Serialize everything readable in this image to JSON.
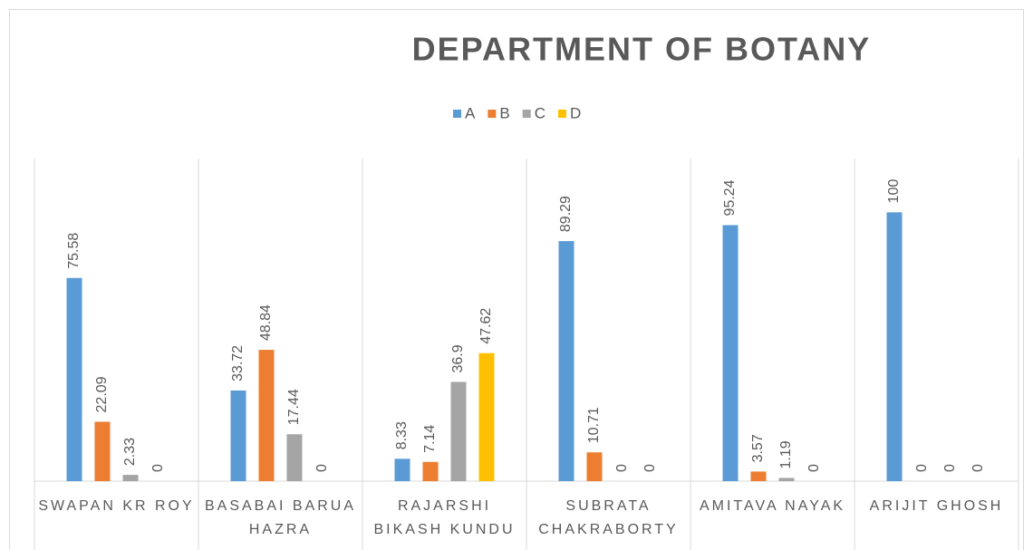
{
  "chart_data": {
    "type": "bar",
    "title": "DEPARTMENT OF BOTANY",
    "categories": [
      "SWAPAN KR ROY",
      "BASABAI BARUA HAZRA",
      "RAJARSHI BIKASH KUNDU",
      "SUBRATA CHAKRABORTY",
      "AMITAVA NAYAK",
      "ARIJIT GHOSH"
    ],
    "series": [
      {
        "name": "A",
        "color": "#5b9bd5",
        "values": [
          75.58,
          33.72,
          8.33,
          89.29,
          95.24,
          100
        ]
      },
      {
        "name": "B",
        "color": "#ed7d31",
        "values": [
          22.09,
          48.84,
          7.14,
          10.71,
          3.57,
          0
        ]
      },
      {
        "name": "C",
        "color": "#a5a5a5",
        "values": [
          2.33,
          17.44,
          36.9,
          0,
          1.19,
          0
        ]
      },
      {
        "name": "D",
        "color": "#ffc000",
        "values": [
          0,
          0,
          47.62,
          0,
          0,
          0
        ]
      }
    ],
    "ylim": [
      0,
      120
    ],
    "legend": "top"
  }
}
